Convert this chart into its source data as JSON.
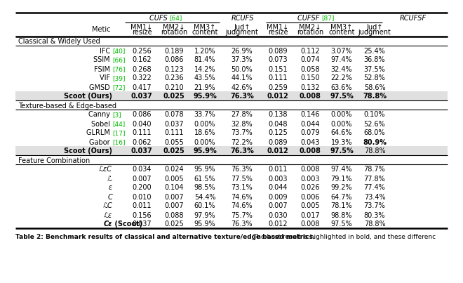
{
  "caption_bold": "Table 2: Benchmark results of classical and alternative texture/edge based metrics.",
  "caption_normal": " The best result is highlighted in bold, and these differences are all statistically significant at the α < 0.05 level. The ↑ indicates that the higher the score is, the better the metric performs.",
  "sections": [
    {
      "section_label": "Classical & Widely Used",
      "rows": [
        {
          "metric": "IFC",
          "ref": "[40]",
          "bold": false,
          "shaded": false,
          "vals": [
            "0.256",
            "0.189",
            "1.20%",
            "26.9%",
            "0.089",
            "0.112",
            "3.07%",
            "25.4%"
          ],
          "bold_vals": [
            false,
            false,
            false,
            false,
            false,
            false,
            false,
            false
          ]
        },
        {
          "metric": "SSIM",
          "ref": "[66]",
          "bold": false,
          "shaded": false,
          "vals": [
            "0.162",
            "0.086",
            "81.4%",
            "37.3%",
            "0.073",
            "0.074",
            "97.4%",
            "36.8%"
          ],
          "bold_vals": [
            false,
            false,
            false,
            false,
            false,
            false,
            false,
            false
          ]
        },
        {
          "metric": "FSIM",
          "ref": "[76]",
          "bold": false,
          "shaded": false,
          "vals": [
            "0.268",
            "0.123",
            "14.2%",
            "50.0%",
            "0.151",
            "0.058",
            "32.4%",
            "37.5%"
          ],
          "bold_vals": [
            false,
            false,
            false,
            false,
            false,
            false,
            false,
            false
          ]
        },
        {
          "metric": "VIF",
          "ref": "[39]",
          "bold": false,
          "shaded": false,
          "vals": [
            "0.322",
            "0.236",
            "43.5%",
            "44.1%",
            "0.111",
            "0.150",
            "22.2%",
            "52.8%"
          ],
          "bold_vals": [
            false,
            false,
            false,
            false,
            false,
            false,
            false,
            false
          ]
        },
        {
          "metric": "GMSD",
          "ref": "[72]",
          "bold": false,
          "shaded": false,
          "vals": [
            "0.417",
            "0.210",
            "21.9%",
            "42.6%",
            "0.259",
            "0.132",
            "63.6%",
            "58.6%"
          ],
          "bold_vals": [
            false,
            false,
            false,
            false,
            false,
            false,
            false,
            false
          ]
        },
        {
          "metric": "Scoot (Ours)",
          "ref": "",
          "bold": true,
          "shaded": true,
          "vals": [
            "0.037",
            "0.025",
            "95.9%",
            "76.3%",
            "0.012",
            "0.008",
            "97.5%",
            "78.8%"
          ],
          "bold_vals": [
            true,
            true,
            true,
            true,
            true,
            true,
            true,
            true
          ]
        }
      ]
    },
    {
      "section_label": "Texture-based & Edge-based",
      "rows": [
        {
          "metric": "Canny",
          "ref": "[3]",
          "bold": false,
          "shaded": false,
          "vals": [
            "0.086",
            "0.078",
            "33.7%",
            "27.8%",
            "0.138",
            "0.146",
            "0.00%",
            "0.10%"
          ],
          "bold_vals": [
            false,
            false,
            false,
            false,
            false,
            false,
            false,
            false
          ]
        },
        {
          "metric": "Sobel",
          "ref": "[44]",
          "bold": false,
          "shaded": false,
          "vals": [
            "0.040",
            "0.037",
            "0.00%",
            "32.8%",
            "0.048",
            "0.044",
            "0.00%",
            "52.6%"
          ],
          "bold_vals": [
            false,
            false,
            false,
            false,
            false,
            false,
            false,
            false
          ]
        },
        {
          "metric": "GLRLM",
          "ref": "[17]",
          "bold": false,
          "shaded": false,
          "vals": [
            "0.111",
            "0.111",
            "18.6%",
            "73.7%",
            "0.125",
            "0.079",
            "64.6%",
            "68.0%"
          ],
          "bold_vals": [
            false,
            false,
            false,
            false,
            false,
            false,
            false,
            false
          ]
        },
        {
          "metric": "Gabor",
          "ref": "[16]",
          "bold": false,
          "shaded": false,
          "vals": [
            "0.062",
            "0.055",
            "0.00%",
            "72.2%",
            "0.089",
            "0.043",
            "19.3%",
            "80.9%"
          ],
          "bold_vals": [
            false,
            false,
            false,
            false,
            false,
            false,
            false,
            true
          ]
        },
        {
          "metric": "Scoot (Ours)",
          "ref": "",
          "bold": true,
          "shaded": true,
          "vals": [
            "0.037",
            "0.025",
            "95.9%",
            "76.3%",
            "0.012",
            "0.008",
            "97.5%",
            "78.8%"
          ],
          "bold_vals": [
            true,
            true,
            true,
            true,
            true,
            true,
            true,
            false
          ]
        }
      ]
    },
    {
      "section_label": "Feature Combination",
      "rows": [
        {
          "metric": "ℒεС",
          "ref": "",
          "bold": false,
          "shaded": false,
          "italic": true,
          "vals": [
            "0.034",
            "0.024",
            "95.9%",
            "76.3%",
            "0.011",
            "0.008",
            "97.4%",
            "78.7%"
          ],
          "bold_vals": [
            false,
            false,
            false,
            false,
            false,
            false,
            false,
            false
          ]
        },
        {
          "metric": "ℒ",
          "ref": "",
          "bold": false,
          "shaded": false,
          "italic": true,
          "vals": [
            "0.007",
            "0.005",
            "61.5%",
            "77.5%",
            "0.003",
            "0.003",
            "79.1%",
            "77.8%"
          ],
          "bold_vals": [
            false,
            false,
            false,
            false,
            false,
            false,
            false,
            false
          ]
        },
        {
          "metric": "ε",
          "ref": "",
          "bold": false,
          "shaded": false,
          "italic": true,
          "vals": [
            "0.200",
            "0.104",
            "98.5%",
            "73.1%",
            "0.044",
            "0.026",
            "99.2%",
            "77.4%"
          ],
          "bold_vals": [
            false,
            false,
            false,
            false,
            false,
            false,
            false,
            false
          ]
        },
        {
          "metric": "С",
          "ref": "",
          "bold": false,
          "shaded": false,
          "italic": true,
          "vals": [
            "0.010",
            "0.007",
            "54.4%",
            "74.6%",
            "0.009",
            "0.006",
            "64.7%",
            "73.4%"
          ],
          "bold_vals": [
            false,
            false,
            false,
            false,
            false,
            false,
            false,
            false
          ]
        },
        {
          "metric": "ℒС",
          "ref": "",
          "bold": false,
          "shaded": false,
          "italic": true,
          "vals": [
            "0.011",
            "0.007",
            "60.1%",
            "74.6%",
            "0.007",
            "0.005",
            "78.1%",
            "73.7%"
          ],
          "bold_vals": [
            false,
            false,
            false,
            false,
            false,
            false,
            false,
            false
          ]
        },
        {
          "metric": "ℒε",
          "ref": "",
          "bold": false,
          "shaded": false,
          "italic": true,
          "vals": [
            "0.156",
            "0.088",
            "97.9%",
            "75.7%",
            "0.030",
            "0.017",
            "98.8%",
            "80.3%"
          ],
          "bold_vals": [
            false,
            false,
            false,
            false,
            false,
            false,
            false,
            false
          ]
        },
        {
          "metric": "Сε",
          "ref": "",
          "scoot_suffix": " (Scoot)",
          "bold": true,
          "shaded": false,
          "italic": true,
          "vals": [
            "0.037",
            "0.025",
            "95.9%",
            "76.3%",
            "0.012",
            "0.008",
            "97.5%",
            "78.8%"
          ],
          "bold_vals": [
            false,
            false,
            false,
            false,
            false,
            false,
            false,
            false
          ]
        }
      ]
    }
  ],
  "ref_color": "#00bb00",
  "shaded_color": "#e0e0e0",
  "bg_color": "#ffffff",
  "font_size": 7.0
}
